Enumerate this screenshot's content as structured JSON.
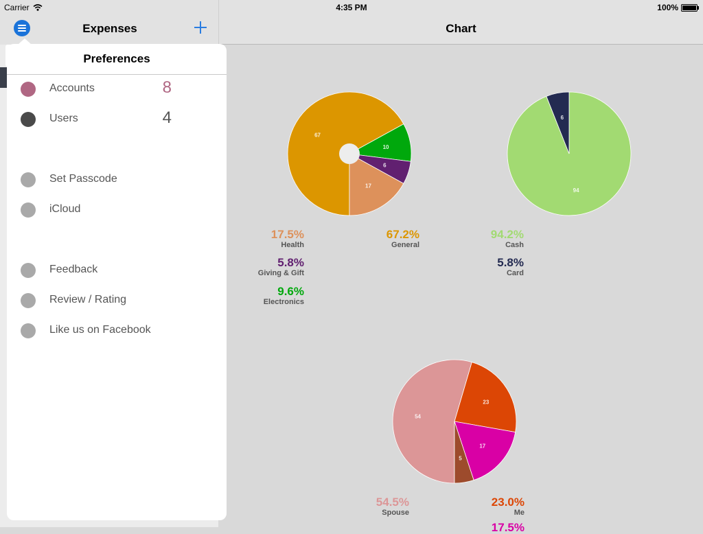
{
  "status_bar": {
    "carrier": "Carrier",
    "time": "4:35 PM",
    "battery": "100%"
  },
  "master": {
    "title": "Expenses"
  },
  "detail": {
    "title": "Chart"
  },
  "popover": {
    "title": "Preferences",
    "items": [
      {
        "label": "Accounts",
        "count": "8",
        "dot_color": "#b06783",
        "count_color": "#b06783"
      },
      {
        "label": "Users",
        "count": "4",
        "dot_color": "#4a4a4a",
        "count_color": "#555555"
      },
      {
        "label": "Set Passcode",
        "dot_color": "#a9a9a9"
      },
      {
        "label": "iCloud",
        "dot_color": "#a9a9a9"
      },
      {
        "label": "Feedback",
        "dot_color": "#a9a9a9"
      },
      {
        "label": "Review / Rating",
        "dot_color": "#a9a9a9"
      },
      {
        "label": "Like us on Facebook",
        "dot_color": "#a9a9a9"
      }
    ]
  },
  "chart_data": [
    {
      "type": "pie",
      "title": "",
      "hole": true,
      "slices": [
        {
          "name": "General",
          "value": 67,
          "percent": "67.2%",
          "color": "#dc9600"
        },
        {
          "name": "Electronics",
          "value": 10,
          "percent": "9.6%",
          "color": "#00a80c"
        },
        {
          "name": "Giving & Gift",
          "value": 6,
          "percent": "5.8%",
          "color": "#612070"
        },
        {
          "name": "Health",
          "value": 17,
          "percent": "17.5%",
          "color": "#dd915b"
        }
      ]
    },
    {
      "type": "pie",
      "title": "",
      "hole": false,
      "slices": [
        {
          "name": "Cash",
          "value": 94,
          "percent": "94.2%",
          "color": "#a2da72"
        },
        {
          "name": "Card",
          "value": 6,
          "percent": "5.8%",
          "color": "#232a51"
        }
      ]
    },
    {
      "type": "pie",
      "title": "",
      "hole": false,
      "slices": [
        {
          "name": "Spouse",
          "value": 54,
          "percent": "54.5%",
          "color": "#dc9697"
        },
        {
          "name": "Me",
          "value": 23,
          "percent": "23.0%",
          "color": "#dc4605"
        },
        {
          "name": "",
          "value": 17,
          "percent": "17.5%",
          "color": "#d900a5"
        },
        {
          "name": "",
          "value": 5,
          "percent": "",
          "color": "#9d4b2c"
        }
      ]
    }
  ]
}
